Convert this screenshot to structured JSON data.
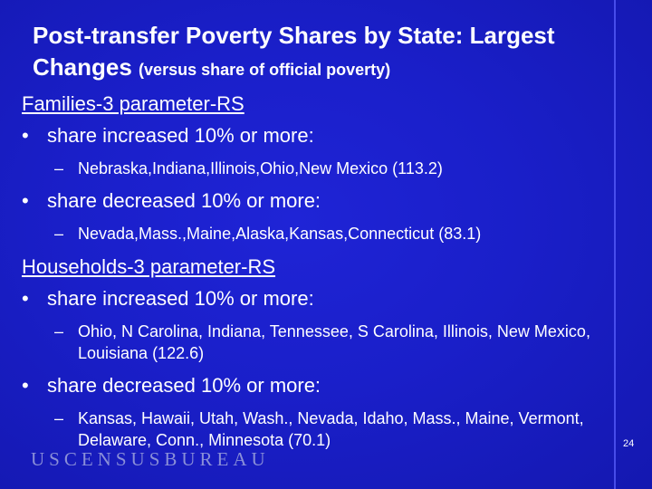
{
  "title": {
    "main": "Post-transfer Poverty Shares by State: Largest Changes",
    "sub": "(versus share of official poverty)"
  },
  "sections": [
    {
      "heading": "Families-3 parameter-RS",
      "bullets": [
        {
          "text": "share increased 10% or more:",
          "detail": "Nebraska,Indiana,Illinois,Ohio,New Mexico (113.2)"
        },
        {
          "text": "share decreased 10% or more:",
          "detail": "Nevada,Mass.,Maine,Alaska,Kansas,Connecticut (83.1)"
        }
      ]
    },
    {
      "heading": "Households-3 parameter-RS",
      "bullets": [
        {
          "text": "share increased 10% or more:",
          "detail": "Ohio, N Carolina, Indiana, Tennessee, S Carolina, Illinois, New Mexico, Louisiana (122.6)"
        },
        {
          "text": "share decreased 10% or more:",
          "detail": "Kansas, Hawaii, Utah, Wash., Nevada, Idaho, Mass., Maine, Vermont, Delaware, Conn., Minnesota (70.1)"
        }
      ]
    }
  ],
  "logo": "USCENSUSBUREAU",
  "page_number": "24",
  "colors": {
    "background": "#1a1fc9",
    "text": "#ffffff",
    "logo": "#8a8fd8"
  }
}
